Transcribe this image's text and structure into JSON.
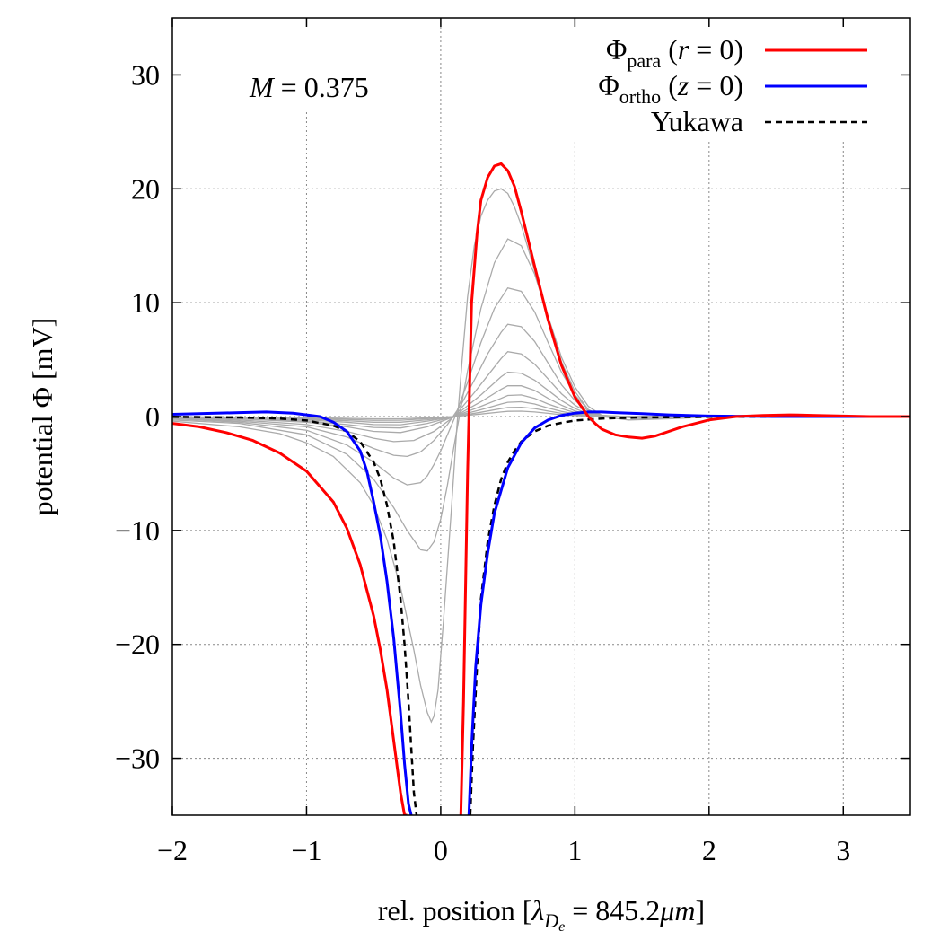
{
  "chart_data": {
    "type": "line",
    "xlabel": {
      "prefix": "rel. position [",
      "symbol": "λ",
      "sub": "D",
      "subsub": "e",
      "eq": " = 845.2",
      "mu": "μ",
      "m": "m",
      "suffix": "]"
    },
    "ylabel": "potential Φ [mV]",
    "xlim": [
      -2,
      3.5
    ],
    "ylim": [
      -35,
      35
    ],
    "xticks": [
      -2,
      -1,
      0,
      1,
      2,
      3
    ],
    "yticks": [
      -30,
      -20,
      -10,
      0,
      10,
      20,
      30
    ],
    "xtick_labels": [
      "−2",
      "−1",
      "0",
      "1",
      "2",
      "3"
    ],
    "ytick_labels": [
      "−30",
      "−20",
      "−10",
      "0",
      "10",
      "20",
      "30"
    ],
    "grid": true,
    "legend_position": "top-right",
    "annotation": {
      "var": "M",
      "rest": " = 0.375"
    },
    "legend": [
      {
        "main": "Φ",
        "sub": "para",
        "open": " (",
        "var": "r",
        "rest": " = 0)",
        "color": "#ff0000",
        "style": "solid"
      },
      {
        "main": "Φ",
        "sub": "ortho",
        "open": " (",
        "var": "z",
        "rest": " = 0)",
        "color": "#0000ff",
        "style": "solid"
      },
      {
        "main": "Yukawa",
        "sub": "",
        "open": "",
        "var": "",
        "rest": "",
        "color": "#000000",
        "style": "dashed"
      }
    ],
    "series": [
      {
        "name": "Φpara (r = 0)",
        "color": "#ff0000",
        "style": "solid",
        "x": [
          -2,
          -1.8,
          -1.6,
          -1.4,
          -1.2,
          -1.0,
          -0.8,
          -0.7,
          -0.6,
          -0.5,
          -0.45,
          -0.4,
          -0.35,
          -0.3,
          -0.27,
          -0.25,
          null,
          0.15,
          0.17,
          0.2,
          0.23,
          0.27,
          0.3,
          0.35,
          0.4,
          0.45,
          0.5,
          0.55,
          0.6,
          0.7,
          0.8,
          0.9,
          1.0,
          1.1,
          1.15,
          1.2,
          1.3,
          1.4,
          1.5,
          1.6,
          1.7,
          1.8,
          2.0,
          2.2,
          2.4,
          2.6,
          2.8,
          3.0,
          3.2,
          3.5
        ],
        "y": [
          -0.6,
          -0.9,
          -1.4,
          -2.1,
          -3.2,
          -4.8,
          -7.5,
          -9.8,
          -13.0,
          -17.5,
          -20.5,
          -24.0,
          -28.5,
          -33.0,
          -35.0,
          -35.0,
          null,
          -35.0,
          -25.0,
          -5.0,
          10.0,
          16.0,
          19.0,
          21.0,
          22.0,
          22.2,
          21.6,
          20.2,
          18.0,
          13.2,
          8.5,
          4.5,
          1.7,
          0.0,
          -0.6,
          -1.1,
          -1.6,
          -1.8,
          -1.9,
          -1.7,
          -1.3,
          -0.9,
          -0.3,
          0.0,
          0.1,
          0.15,
          0.1,
          0.05,
          0.0,
          0.0
        ]
      },
      {
        "name": "Φortho (z = 0)",
        "color": "#0000ff",
        "style": "solid",
        "x": [
          -2,
          -1.8,
          -1.5,
          -1.3,
          -1.1,
          -0.9,
          -0.8,
          -0.7,
          -0.6,
          -0.55,
          -0.5,
          -0.45,
          -0.4,
          -0.35,
          -0.3,
          -0.27,
          -0.24,
          -0.22,
          null,
          0.21,
          0.23,
          0.26,
          0.3,
          0.35,
          0.4,
          0.5,
          0.6,
          0.7,
          0.8,
          0.9,
          1.0,
          1.1,
          1.2,
          1.3,
          1.5,
          1.7,
          2.0,
          2.5,
          3.0,
          3.5
        ],
        "y": [
          0.2,
          0.25,
          0.35,
          0.4,
          0.3,
          0.0,
          -0.5,
          -1.3,
          -3.0,
          -4.8,
          -7.5,
          -10.5,
          -14.5,
          -19.5,
          -26.0,
          -30.5,
          -34.0,
          -35.0,
          null,
          -35.0,
          -29.0,
          -22.0,
          -16.5,
          -12.0,
          -8.5,
          -4.5,
          -2.3,
          -1.0,
          -0.3,
          0.1,
          0.3,
          0.4,
          0.4,
          0.35,
          0.25,
          0.15,
          0.05,
          0.0,
          0.0,
          0.0
        ]
      },
      {
        "name": "Yukawa",
        "color": "#000000",
        "style": "dashed",
        "x": [
          -2,
          -1.5,
          -1.2,
          -1.0,
          -0.8,
          -0.7,
          -0.6,
          -0.5,
          -0.45,
          -0.4,
          -0.35,
          -0.3,
          -0.27,
          -0.24,
          -0.22,
          -0.2,
          -0.18,
          null,
          0.22,
          0.24,
          0.27,
          0.3,
          0.35,
          0.4,
          0.45,
          0.5,
          0.55,
          0.6,
          0.7,
          0.8,
          0.9,
          1.0,
          1.2,
          1.5,
          2.0,
          2.5,
          3.0,
          3.5
        ],
        "y": [
          -0.02,
          -0.08,
          -0.17,
          -0.35,
          -0.8,
          -1.3,
          -2.2,
          -4.0,
          -5.5,
          -7.8,
          -11.0,
          -16.0,
          -20.0,
          -25.0,
          -29.0,
          -33.0,
          -35.0,
          null,
          -35.0,
          -29.0,
          -22.0,
          -16.0,
          -11.0,
          -7.8,
          -5.5,
          -4.0,
          -3.0,
          -2.2,
          -1.3,
          -0.8,
          -0.55,
          -0.35,
          -0.17,
          -0.08,
          -0.02,
          -0.01,
          0.0,
          0.0
        ]
      }
    ],
    "gray_curves": {
      "color": "#aaaaaa",
      "description_free": true,
      "curves": [
        {
          "x": [
            -2,
            -1.5,
            -1.2,
            -1.0,
            -0.8,
            -0.6,
            -0.5,
            -0.4,
            -0.3,
            -0.2,
            -0.15,
            -0.1,
            -0.07,
            -0.05,
            -0.02,
            0.02,
            0.08,
            0.12,
            0.16,
            0.2,
            0.25,
            0.3,
            0.35,
            0.4,
            0.45,
            0.5,
            0.55,
            0.6,
            0.7,
            0.8,
            0.9,
            1.0,
            1.1,
            1.2,
            1.4,
            1.7,
            2.0,
            2.5,
            3.5
          ],
          "y": [
            -0.4,
            -0.9,
            -1.5,
            -2.3,
            -3.5,
            -5.8,
            -7.8,
            -10.8,
            -15.0,
            -20.5,
            -23.6,
            -26.0,
            -26.8,
            -26.3,
            -24.0,
            -18.0,
            -8.0,
            -1.0,
            5.0,
            10.5,
            15.0,
            17.6,
            19.0,
            19.8,
            20.0,
            19.6,
            18.4,
            16.8,
            12.8,
            8.5,
            4.8,
            2.2,
            0.6,
            0.0,
            -0.3,
            -0.2,
            -0.05,
            0.0,
            0.0
          ]
        },
        {
          "x": [
            -2,
            -1.5,
            -1.0,
            -0.7,
            -0.5,
            -0.35,
            -0.25,
            -0.15,
            -0.1,
            -0.05,
            0.0,
            0.05,
            0.1,
            0.2,
            0.3,
            0.4,
            0.5,
            0.6,
            0.7,
            0.8,
            0.9,
            1.0,
            1.1,
            1.2,
            1.5,
            2.0,
            3.5
          ],
          "y": [
            -0.3,
            -0.6,
            -1.6,
            -3.3,
            -5.5,
            -8.0,
            -10.0,
            -11.7,
            -11.8,
            -11.0,
            -9.0,
            -6.0,
            -2.5,
            4.0,
            9.5,
            13.5,
            15.6,
            15.0,
            12.5,
            8.8,
            5.2,
            2.6,
            0.9,
            0.1,
            -0.2,
            0.0,
            0.0
          ]
        },
        {
          "x": [
            -2,
            -1.5,
            -1.0,
            -0.7,
            -0.5,
            -0.35,
            -0.25,
            -0.15,
            -0.1,
            -0.05,
            0.0,
            0.05,
            0.1,
            0.2,
            0.3,
            0.4,
            0.5,
            0.6,
            0.7,
            0.8,
            0.9,
            1.0,
            1.1,
            1.2,
            1.5,
            2.0,
            3.5
          ],
          "y": [
            -0.2,
            -0.5,
            -1.2,
            -2.5,
            -4.0,
            -5.4,
            -6.0,
            -5.8,
            -5.2,
            -4.2,
            -3.0,
            -1.6,
            -0.2,
            3.0,
            6.5,
            9.5,
            11.3,
            11.0,
            9.2,
            6.5,
            3.9,
            1.9,
            0.6,
            0.1,
            -0.1,
            0.0,
            0.0
          ]
        },
        {
          "x": [
            -2,
            -1.5,
            -1.0,
            -0.7,
            -0.5,
            -0.35,
            -0.25,
            -0.15,
            -0.05,
            0.05,
            0.15,
            0.25,
            0.35,
            0.45,
            0.5,
            0.6,
            0.7,
            0.8,
            0.9,
            1.0,
            1.1,
            1.2,
            1.5,
            2.0,
            3.5
          ],
          "y": [
            -0.15,
            -0.4,
            -0.9,
            -1.8,
            -2.8,
            -3.4,
            -3.5,
            -3.1,
            -2.1,
            -0.7,
            1.0,
            3.2,
            5.5,
            7.4,
            8.1,
            7.9,
            6.6,
            4.7,
            2.8,
            1.4,
            0.5,
            0.1,
            -0.05,
            0.0,
            0.0
          ]
        },
        {
          "x": [
            -2,
            -1.5,
            -1.0,
            -0.7,
            -0.5,
            -0.35,
            -0.2,
            -0.05,
            0.1,
            0.25,
            0.35,
            0.45,
            0.5,
            0.6,
            0.7,
            0.8,
            0.9,
            1.0,
            1.1,
            1.2,
            1.5,
            2.0,
            3.5
          ],
          "y": [
            -0.1,
            -0.3,
            -0.7,
            -1.3,
            -1.9,
            -2.2,
            -2.1,
            -1.3,
            0.0,
            2.1,
            3.6,
            5.1,
            5.7,
            5.5,
            4.6,
            3.3,
            2.0,
            1.0,
            0.35,
            0.05,
            0.0,
            0.0,
            0.0
          ]
        },
        {
          "x": [
            -2,
            -1.5,
            -1.0,
            -0.7,
            -0.5,
            -0.3,
            -0.1,
            0.1,
            0.3,
            0.45,
            0.5,
            0.6,
            0.7,
            0.8,
            0.9,
            1.0,
            1.1,
            1.2,
            1.5,
            2.0,
            3.5
          ],
          "y": [
            -0.08,
            -0.2,
            -0.5,
            -0.9,
            -1.3,
            -1.4,
            -0.9,
            0.0,
            1.9,
            3.5,
            3.9,
            3.8,
            3.2,
            2.3,
            1.4,
            0.7,
            0.25,
            0.05,
            0.0,
            0.0,
            0.0
          ]
        },
        {
          "x": [
            -2,
            -1.5,
            -1.0,
            -0.7,
            -0.5,
            -0.3,
            -0.1,
            0.1,
            0.3,
            0.45,
            0.5,
            0.6,
            0.7,
            0.8,
            0.9,
            1.0,
            1.1,
            1.2,
            1.5,
            2.0,
            3.5
          ],
          "y": [
            -0.06,
            -0.15,
            -0.4,
            -0.7,
            -0.95,
            -1.0,
            -0.6,
            0.0,
            1.3,
            2.4,
            2.7,
            2.7,
            2.3,
            1.6,
            1.0,
            0.5,
            0.18,
            0.04,
            0.0,
            0.0,
            0.0
          ]
        },
        {
          "x": [
            -2,
            -1.5,
            -1.0,
            -0.7,
            -0.5,
            -0.3,
            -0.1,
            0.1,
            0.3,
            0.45,
            0.5,
            0.6,
            0.7,
            0.8,
            0.9,
            1.0,
            1.1,
            1.2,
            1.5,
            2.0,
            3.5
          ],
          "y": [
            -0.05,
            -0.12,
            -0.3,
            -0.5,
            -0.7,
            -0.72,
            -0.4,
            0.0,
            0.9,
            1.6,
            1.85,
            1.9,
            1.6,
            1.1,
            0.7,
            0.35,
            0.12,
            0.03,
            0.0,
            0.0,
            0.0
          ]
        },
        {
          "x": [
            -2,
            -1.5,
            -1.0,
            -0.7,
            -0.5,
            -0.3,
            -0.1,
            0.1,
            0.3,
            0.45,
            0.5,
            0.6,
            0.7,
            0.8,
            0.9,
            1.0,
            1.1,
            1.2,
            1.5,
            2.0,
            3.5
          ],
          "y": [
            -0.04,
            -0.1,
            -0.22,
            -0.36,
            -0.5,
            -0.5,
            -0.28,
            0.0,
            0.6,
            1.1,
            1.25,
            1.3,
            1.1,
            0.75,
            0.45,
            0.22,
            0.08,
            0.02,
            0.0,
            0.0,
            0.0
          ]
        },
        {
          "x": [
            -2,
            -1.5,
            -1.0,
            -0.7,
            -0.5,
            -0.3,
            -0.1,
            0.1,
            0.3,
            0.45,
            0.5,
            0.6,
            0.7,
            0.8,
            0.9,
            1.0,
            1.1,
            1.2,
            1.5,
            2.0,
            3.5
          ],
          "y": [
            -0.03,
            -0.07,
            -0.15,
            -0.25,
            -0.33,
            -0.32,
            -0.18,
            0.0,
            0.38,
            0.7,
            0.8,
            0.82,
            0.7,
            0.48,
            0.28,
            0.14,
            0.05,
            0.01,
            0.0,
            0.0,
            0.0
          ]
        },
        {
          "x": [
            -2,
            -1.5,
            -1.0,
            -0.7,
            -0.5,
            -0.3,
            -0.1,
            0.1,
            0.3,
            0.45,
            0.5,
            0.6,
            0.7,
            0.8,
            0.9,
            1.0,
            1.1,
            1.2,
            1.5,
            2.0,
            3.5
          ],
          "y": [
            -0.02,
            -0.05,
            -0.1,
            -0.16,
            -0.2,
            -0.2,
            -0.11,
            0.0,
            0.22,
            0.4,
            0.46,
            0.47,
            0.4,
            0.28,
            0.16,
            0.08,
            0.03,
            0.01,
            0.0,
            0.0,
            0.0
          ]
        }
      ]
    }
  }
}
